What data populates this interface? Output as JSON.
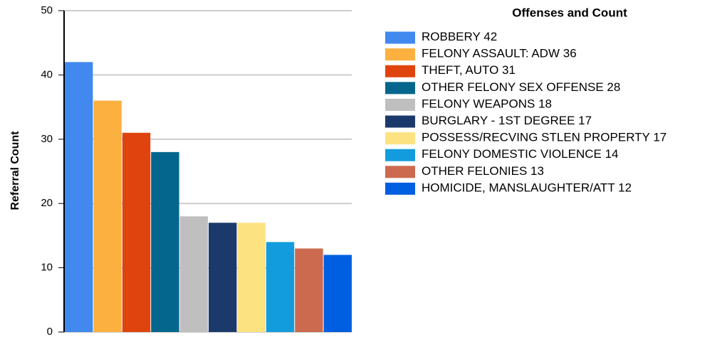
{
  "chart_data": {
    "type": "bar",
    "y_axis_label": "Referral Count",
    "legend_title": "Offenses and Count",
    "categories": [
      "ROBBERY",
      "FELONY ASSAULT: ADW",
      "THEFT, AUTO",
      "OTHER FELONY SEX OFFENSE",
      "FELONY WEAPONS",
      "BURGLARY - 1ST DEGREE",
      "POSSESS/RECVING STLEN PROPERTY",
      "FELONY DOMESTIC VIOLENCE",
      "OTHER FELONIES",
      "HOMICIDE, MANSLAUGHTER/ATT"
    ],
    "values": [
      42,
      36,
      31,
      28,
      18,
      17,
      17,
      14,
      13,
      12
    ],
    "colors": [
      "#4189ef",
      "#fbb040",
      "#e0440e",
      "#05668d",
      "#bfbfbf",
      "#1b3a6b",
      "#fde281",
      "#129cdd",
      "#cc6a4f",
      "#005ee0"
    ],
    "ylim": [
      0,
      50
    ],
    "yticks": [
      0,
      10,
      20,
      30,
      40,
      50
    ],
    "grid": true,
    "legend": "right"
  }
}
